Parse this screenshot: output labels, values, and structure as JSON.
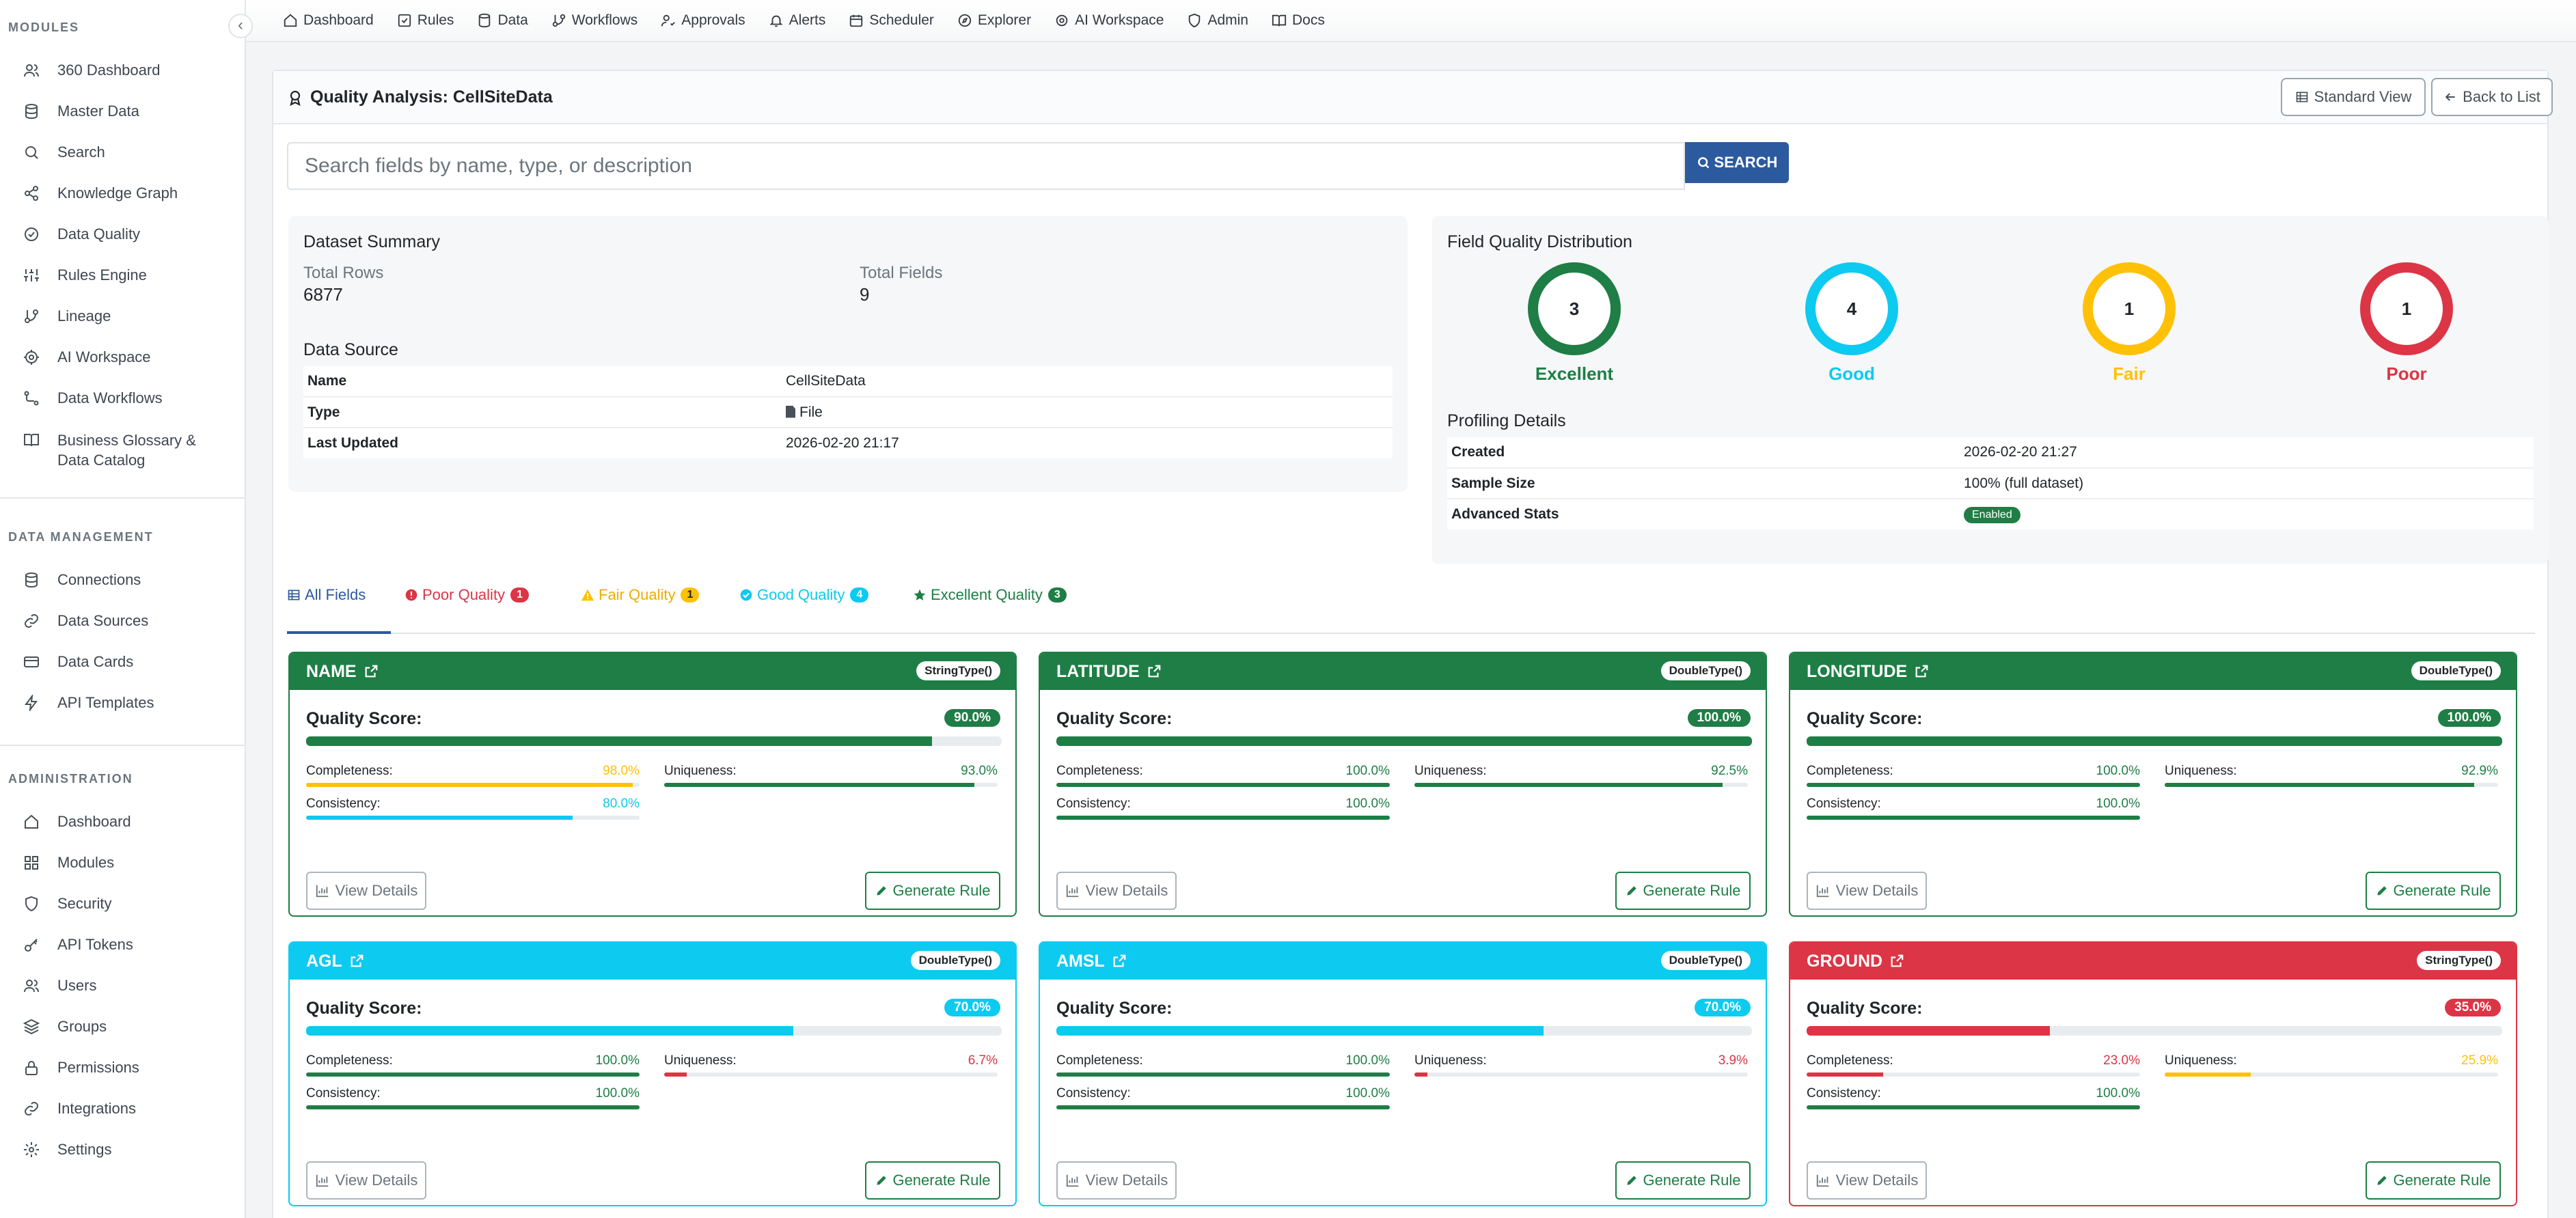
{
  "colors": {
    "excellent": "#1e7e45",
    "good": "#0dcaf0",
    "fair": "#ffc107",
    "poor": "#dc3545",
    "primary": "#2c5a9e"
  },
  "sidebar": {
    "collapse_glyph": "‹",
    "sections": [
      {
        "title": "MODULES",
        "items": [
          {
            "label": "360 Dashboard",
            "icon": "users-icon"
          },
          {
            "label": "Master Data",
            "icon": "database-icon"
          },
          {
            "label": "Search",
            "icon": "search-icon"
          },
          {
            "label": "Knowledge Graph",
            "icon": "share-icon"
          },
          {
            "label": "Data Quality",
            "icon": "check-circle-icon"
          },
          {
            "label": "Rules Engine",
            "icon": "sliders-icon"
          },
          {
            "label": "Lineage",
            "icon": "git-branch-icon"
          },
          {
            "label": "AI Workspace",
            "icon": "cpu-icon"
          },
          {
            "label": "Data Workflows",
            "icon": "workflow-icon"
          },
          {
            "label": "Business Glossary & Data Catalog",
            "icon": "book-icon"
          }
        ]
      },
      {
        "title": "DATA MANAGEMENT",
        "items": [
          {
            "label": "Connections",
            "icon": "database-icon"
          },
          {
            "label": "Data Sources",
            "icon": "link-icon"
          },
          {
            "label": "Data Cards",
            "icon": "card-icon"
          },
          {
            "label": "API Templates",
            "icon": "bolt-icon"
          }
        ]
      },
      {
        "title": "ADMINISTRATION",
        "items": [
          {
            "label": "Dashboard",
            "icon": "home-icon"
          },
          {
            "label": "Modules",
            "icon": "grid-icon"
          },
          {
            "label": "Security",
            "icon": "shield-icon"
          },
          {
            "label": "API Tokens",
            "icon": "key-icon"
          },
          {
            "label": "Users",
            "icon": "users-icon"
          },
          {
            "label": "Groups",
            "icon": "layers-icon"
          },
          {
            "label": "Permissions",
            "icon": "lock-icon"
          },
          {
            "label": "Integrations",
            "icon": "link-icon"
          },
          {
            "label": "Settings",
            "icon": "gear-icon"
          }
        ]
      }
    ]
  },
  "topnav": [
    {
      "label": "Dashboard",
      "icon": "home-icon"
    },
    {
      "label": "Rules",
      "icon": "check-square-icon"
    },
    {
      "label": "Data",
      "icon": "database-icon"
    },
    {
      "label": "Workflows",
      "icon": "git-branch-icon"
    },
    {
      "label": "Approvals",
      "icon": "user-check-icon"
    },
    {
      "label": "Alerts",
      "icon": "bell-icon"
    },
    {
      "label": "Scheduler",
      "icon": "calendar-icon"
    },
    {
      "label": "Explorer",
      "icon": "compass-icon"
    },
    {
      "label": "AI Workspace",
      "icon": "cpu-icon"
    },
    {
      "label": "Admin",
      "icon": "shield-icon"
    },
    {
      "label": "Docs",
      "icon": "book-icon"
    }
  ],
  "header": {
    "title": "Quality Analysis: CellSiteData",
    "standard_view": "Standard View",
    "back": "Back to List"
  },
  "search": {
    "placeholder": "Search fields by name, type, or description",
    "value": "",
    "button": "SEARCH"
  },
  "summary": {
    "title": "Dataset Summary",
    "total_rows_label": "Total Rows",
    "total_rows": "6877",
    "total_fields_label": "Total Fields",
    "total_fields": "9",
    "source_title": "Data Source",
    "source_rows": [
      {
        "key": "Name",
        "value": "CellSiteData"
      },
      {
        "key": "Type",
        "value": "File"
      },
      {
        "key": "Last Updated",
        "value": "2026-02-20 21:17"
      }
    ]
  },
  "distribution": {
    "title": "Field Quality Distribution",
    "items": [
      {
        "label": "Excellent",
        "count": "3"
      },
      {
        "label": "Good",
        "count": "4"
      },
      {
        "label": "Fair",
        "count": "1"
      },
      {
        "label": "Poor",
        "count": "1"
      }
    ]
  },
  "profiling": {
    "title": "Profiling Details",
    "rows": [
      {
        "key": "Created",
        "value": "2026-02-20 21:27"
      },
      {
        "key": "Sample Size",
        "value": "100% (full dataset)"
      },
      {
        "key": "Advanced Stats",
        "value": "Enabled"
      }
    ]
  },
  "tabs": [
    {
      "label": "All Fields",
      "count": null
    },
    {
      "label": "Poor Quality",
      "count": "1"
    },
    {
      "label": "Fair Quality",
      "count": "1"
    },
    {
      "label": "Good Quality",
      "count": "4"
    },
    {
      "label": "Excellent Quality",
      "count": "3"
    }
  ],
  "score_label": "Quality Score:",
  "metric_labels": {
    "completeness": "Completeness:",
    "uniqueness": "Uniqueness:",
    "consistency": "Consistency:"
  },
  "buttons": {
    "view_details": "View Details",
    "generate_rule": "Generate Rule"
  },
  "fields": [
    {
      "name": "NAME",
      "type": "StringType()",
      "quality": "excellent",
      "score": "90.0%",
      "score_value": 90.0,
      "completeness": "98.0%",
      "completeness_value": 98.0,
      "completeness_quality": "fair",
      "uniqueness": "93.0%",
      "uniqueness_value": 93.0,
      "uniqueness_quality": "excellent",
      "consistency": "80.0%",
      "consistency_value": 80.0,
      "consistency_quality": "good"
    },
    {
      "name": "LATITUDE",
      "type": "DoubleType()",
      "quality": "excellent",
      "score": "100.0%",
      "score_value": 100.0,
      "completeness": "100.0%",
      "completeness_value": 100.0,
      "completeness_quality": "excellent",
      "uniqueness": "92.5%",
      "uniqueness_value": 92.5,
      "uniqueness_quality": "excellent",
      "consistency": "100.0%",
      "consistency_value": 100.0,
      "consistency_quality": "excellent"
    },
    {
      "name": "LONGITUDE",
      "type": "DoubleType()",
      "quality": "excellent",
      "score": "100.0%",
      "score_value": 100.0,
      "completeness": "100.0%",
      "completeness_value": 100.0,
      "completeness_quality": "excellent",
      "uniqueness": "92.9%",
      "uniqueness_value": 92.9,
      "uniqueness_quality": "excellent",
      "consistency": "100.0%",
      "consistency_value": 100.0,
      "consistency_quality": "excellent"
    },
    {
      "name": "AGL",
      "type": "DoubleType()",
      "quality": "good",
      "score": "70.0%",
      "score_value": 70.0,
      "completeness": "100.0%",
      "completeness_value": 100.0,
      "completeness_quality": "excellent",
      "uniqueness": "6.7%",
      "uniqueness_value": 6.7,
      "uniqueness_quality": "poor",
      "consistency": "100.0%",
      "consistency_value": 100.0,
      "consistency_quality": "excellent"
    },
    {
      "name": "AMSL",
      "type": "DoubleType()",
      "quality": "good",
      "score": "70.0%",
      "score_value": 70.0,
      "completeness": "100.0%",
      "completeness_value": 100.0,
      "completeness_quality": "excellent",
      "uniqueness": "3.9%",
      "uniqueness_value": 3.9,
      "uniqueness_quality": "poor",
      "consistency": "100.0%",
      "consistency_value": 100.0,
      "consistency_quality": "excellent"
    },
    {
      "name": "GROUND",
      "type": "StringType()",
      "quality": "poor",
      "score": "35.0%",
      "score_value": 35.0,
      "completeness": "23.0%",
      "completeness_value": 23.0,
      "completeness_quality": "poor",
      "uniqueness": "25.9%",
      "uniqueness_value": 25.9,
      "uniqueness_quality": "fair",
      "consistency": "100.0%",
      "consistency_value": 100.0,
      "consistency_quality": "excellent"
    }
  ]
}
